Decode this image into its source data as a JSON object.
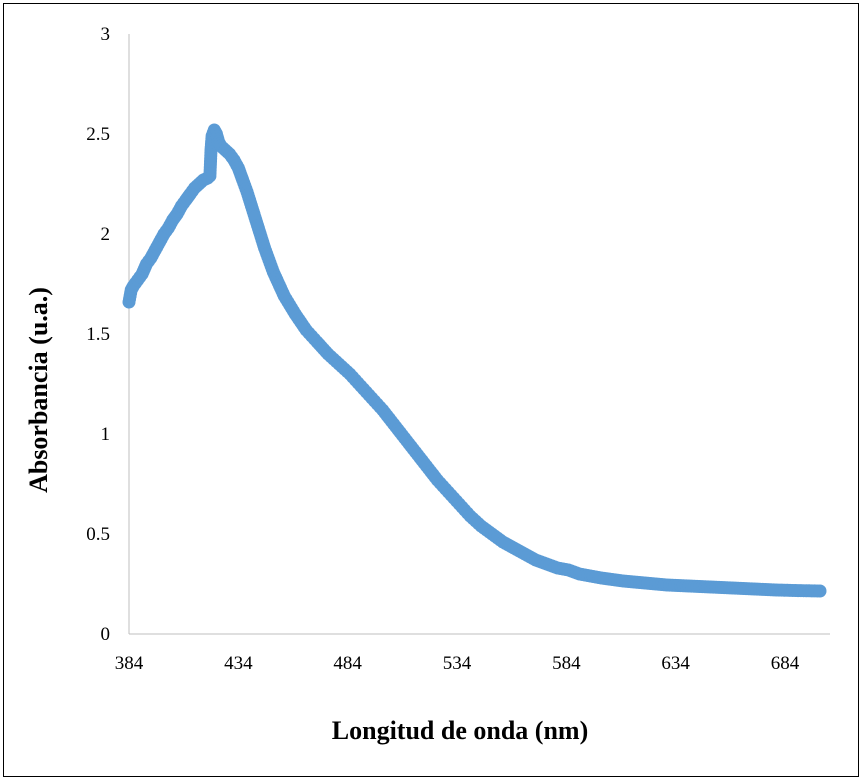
{
  "chart_data": {
    "type": "scatter",
    "title": "",
    "xlabel": "Longitud de onda (nm)",
    "ylabel": "Absorbancia (u.a.)",
    "xlim": [
      384,
      700
    ],
    "ylim": [
      0,
      3
    ],
    "x_ticks": [
      "384",
      "434",
      "484",
      "534",
      "584",
      "634",
      "684"
    ],
    "y_ticks": [
      "0",
      "0.5",
      "1",
      "1.5",
      "2",
      "2.5",
      "3"
    ],
    "grid": false,
    "legend": "none",
    "marker_color": "#5b9bd5",
    "line_color": "#1f3864",
    "series": [
      {
        "x": [
          384,
          385,
          386,
          388,
          390,
          392,
          394,
          396,
          398,
          400,
          402,
          404,
          406,
          408,
          410,
          412,
          414,
          416,
          418,
          420,
          421,
          421.5,
          422,
          423,
          424,
          425,
          426,
          427,
          428,
          430,
          432,
          434,
          436,
          438,
          440,
          442,
          444,
          446,
          448,
          450,
          455,
          460,
          465,
          470,
          475,
          480,
          485,
          490,
          495,
          500,
          505,
          510,
          515,
          520,
          525,
          530,
          535,
          540,
          545,
          550,
          555,
          560,
          565,
          570,
          575,
          580,
          585,
          590,
          595,
          600,
          610,
          620,
          630,
          640,
          650,
          660,
          670,
          680,
          690,
          700
        ],
        "y": [
          1.66,
          1.72,
          1.74,
          1.77,
          1.8,
          1.85,
          1.88,
          1.92,
          1.96,
          2.0,
          2.03,
          2.07,
          2.1,
          2.14,
          2.17,
          2.2,
          2.23,
          2.25,
          2.27,
          2.28,
          2.29,
          2.42,
          2.49,
          2.52,
          2.5,
          2.46,
          2.44,
          2.43,
          2.42,
          2.4,
          2.37,
          2.33,
          2.27,
          2.21,
          2.14,
          2.07,
          2.0,
          1.93,
          1.87,
          1.81,
          1.69,
          1.6,
          1.52,
          1.46,
          1.4,
          1.35,
          1.3,
          1.24,
          1.18,
          1.12,
          1.05,
          0.98,
          0.91,
          0.84,
          0.77,
          0.71,
          0.65,
          0.59,
          0.54,
          0.5,
          0.46,
          0.43,
          0.4,
          0.37,
          0.35,
          0.33,
          0.32,
          0.3,
          0.29,
          0.28,
          0.265,
          0.255,
          0.245,
          0.24,
          0.235,
          0.23,
          0.225,
          0.22,
          0.217,
          0.215
        ]
      }
    ]
  }
}
